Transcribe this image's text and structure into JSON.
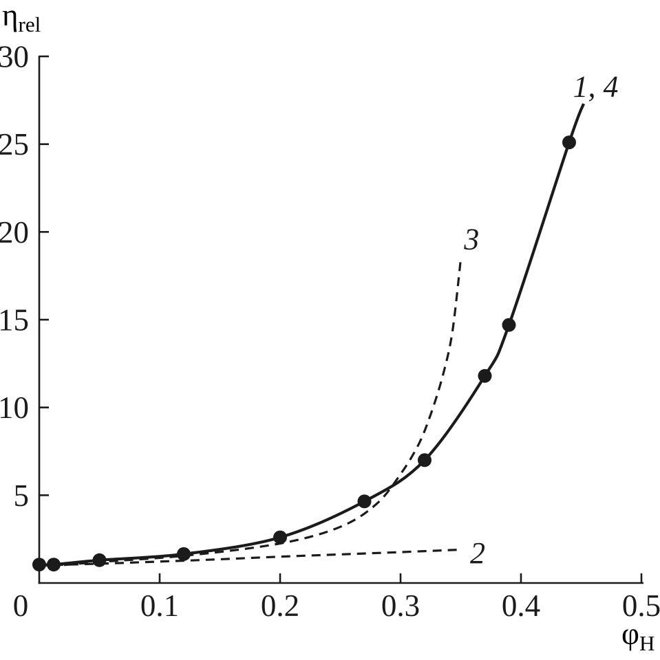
{
  "figure": {
    "background": "#ffffff",
    "ink": "#1b1b1b"
  },
  "chart_data": {
    "type": "line",
    "title": "",
    "xlabel": {
      "main": "φ",
      "sub": "H"
    },
    "ylabel": {
      "main": "η",
      "sub": "rel"
    },
    "xlim": [
      0,
      0.5
    ],
    "ylim": [
      0,
      30
    ],
    "grid": false,
    "legend_position": "inline-curve-labels",
    "x_ticks": [
      {
        "value": 0,
        "label": "0",
        "dx": -27
      },
      {
        "value": 0.1,
        "label": "0.1"
      },
      {
        "value": 0.2,
        "label": "0.2"
      },
      {
        "value": 0.3,
        "label": "0.3"
      },
      {
        "value": 0.4,
        "label": "0.4"
      },
      {
        "value": 0.5,
        "label": "0.5"
      }
    ],
    "y_ticks": [
      {
        "value": 5,
        "label": "5"
      },
      {
        "value": 10,
        "label": "10"
      },
      {
        "value": 15,
        "label": "15"
      },
      {
        "value": 20,
        "label": "20"
      },
      {
        "value": 25,
        "label": "25"
      },
      {
        "value": 30,
        "label": "30"
      }
    ],
    "series": [
      {
        "name": "experimental-curve-1-4",
        "label": "1, 4",
        "line_style": "solid",
        "line_width": 4.2,
        "markers": true,
        "marker_radius": 10,
        "points": [
          [
            0.0,
            1.05
          ],
          [
            0.012,
            1.05
          ],
          [
            0.05,
            1.3
          ],
          [
            0.12,
            1.65
          ],
          [
            0.2,
            2.6
          ],
          [
            0.27,
            4.65
          ],
          [
            0.32,
            7.0
          ],
          [
            0.37,
            11.8
          ],
          [
            0.39,
            14.7
          ],
          [
            0.44,
            25.1
          ]
        ],
        "tail": [
          [
            0.452,
            27.3
          ]
        ],
        "label_pos": [
          0.462,
          28.3
        ]
      },
      {
        "name": "model-curve-3",
        "label": "3",
        "line_style": "dashed",
        "line_width": 3.2,
        "markers": false,
        "points": [
          [
            0.008,
            0.95
          ],
          [
            0.05,
            1.2
          ],
          [
            0.12,
            1.55
          ],
          [
            0.2,
            2.25
          ],
          [
            0.25,
            3.2
          ],
          [
            0.28,
            4.5
          ],
          [
            0.3,
            6.2
          ],
          [
            0.315,
            7.9
          ],
          [
            0.325,
            9.6
          ],
          [
            0.335,
            11.8
          ],
          [
            0.343,
            14.3
          ],
          [
            0.35,
            18.45
          ]
        ],
        "label_pos": [
          0.359,
          19.6
        ]
      },
      {
        "name": "model-curve-2",
        "label": "2",
        "line_style": "dashed",
        "line_width": 3.2,
        "markers": false,
        "points": [
          [
            0.0,
            1.0
          ],
          [
            0.05,
            1.1
          ],
          [
            0.1,
            1.22
          ],
          [
            0.15,
            1.35
          ],
          [
            0.2,
            1.5
          ],
          [
            0.25,
            1.63
          ],
          [
            0.3,
            1.76
          ],
          [
            0.35,
            1.9
          ]
        ],
        "label_pos": [
          0.364,
          1.72
        ]
      }
    ]
  }
}
